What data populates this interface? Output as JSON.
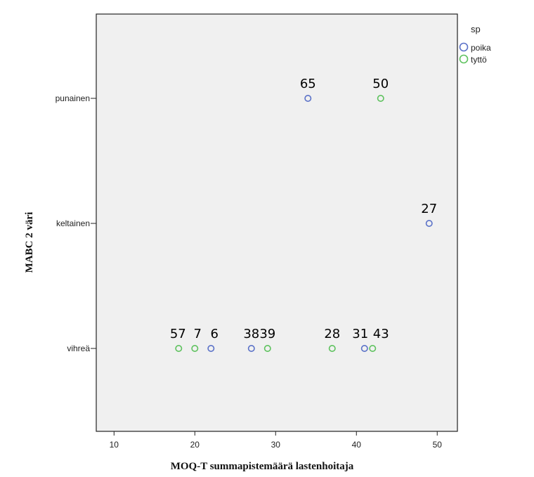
{
  "chart_data": {
    "type": "scatter",
    "xlabel": "MOQ-T summapistemäärä lastenhoitaja",
    "ylabel": "MABC 2 väri",
    "xlim": [
      7.8,
      52.5
    ],
    "xticks": [
      "10",
      "20",
      "30",
      "40",
      "50"
    ],
    "categories": [
      "punainen",
      "keltainen",
      "vihreä"
    ],
    "grid": false,
    "legend": {
      "title": "sp",
      "placement": "top-right"
    },
    "series": [
      {
        "name": "poika",
        "color": "#5b72c8",
        "points": [
          {
            "x": 34,
            "y": "punainen",
            "label": "65"
          },
          {
            "x": 49,
            "y": "keltainen",
            "label": "27"
          },
          {
            "x": 22,
            "y": "vihreä",
            "label": "6"
          },
          {
            "x": 27,
            "y": "vihreä",
            "label": "38"
          },
          {
            "x": 41,
            "y": "vihreä",
            "label": "31"
          }
        ]
      },
      {
        "name": "tyttö",
        "color": "#5ec25e",
        "points": [
          {
            "x": 43,
            "y": "punainen",
            "label": "50"
          },
          {
            "x": 18,
            "y": "vihreä",
            "label": "57"
          },
          {
            "x": 20,
            "y": "vihreä",
            "label": "7"
          },
          {
            "x": 29,
            "y": "vihreä",
            "label": "39"
          },
          {
            "x": 37,
            "y": "vihreä",
            "label": "28"
          },
          {
            "x": 42,
            "y": "vihreä",
            "label": "43"
          }
        ]
      }
    ]
  }
}
